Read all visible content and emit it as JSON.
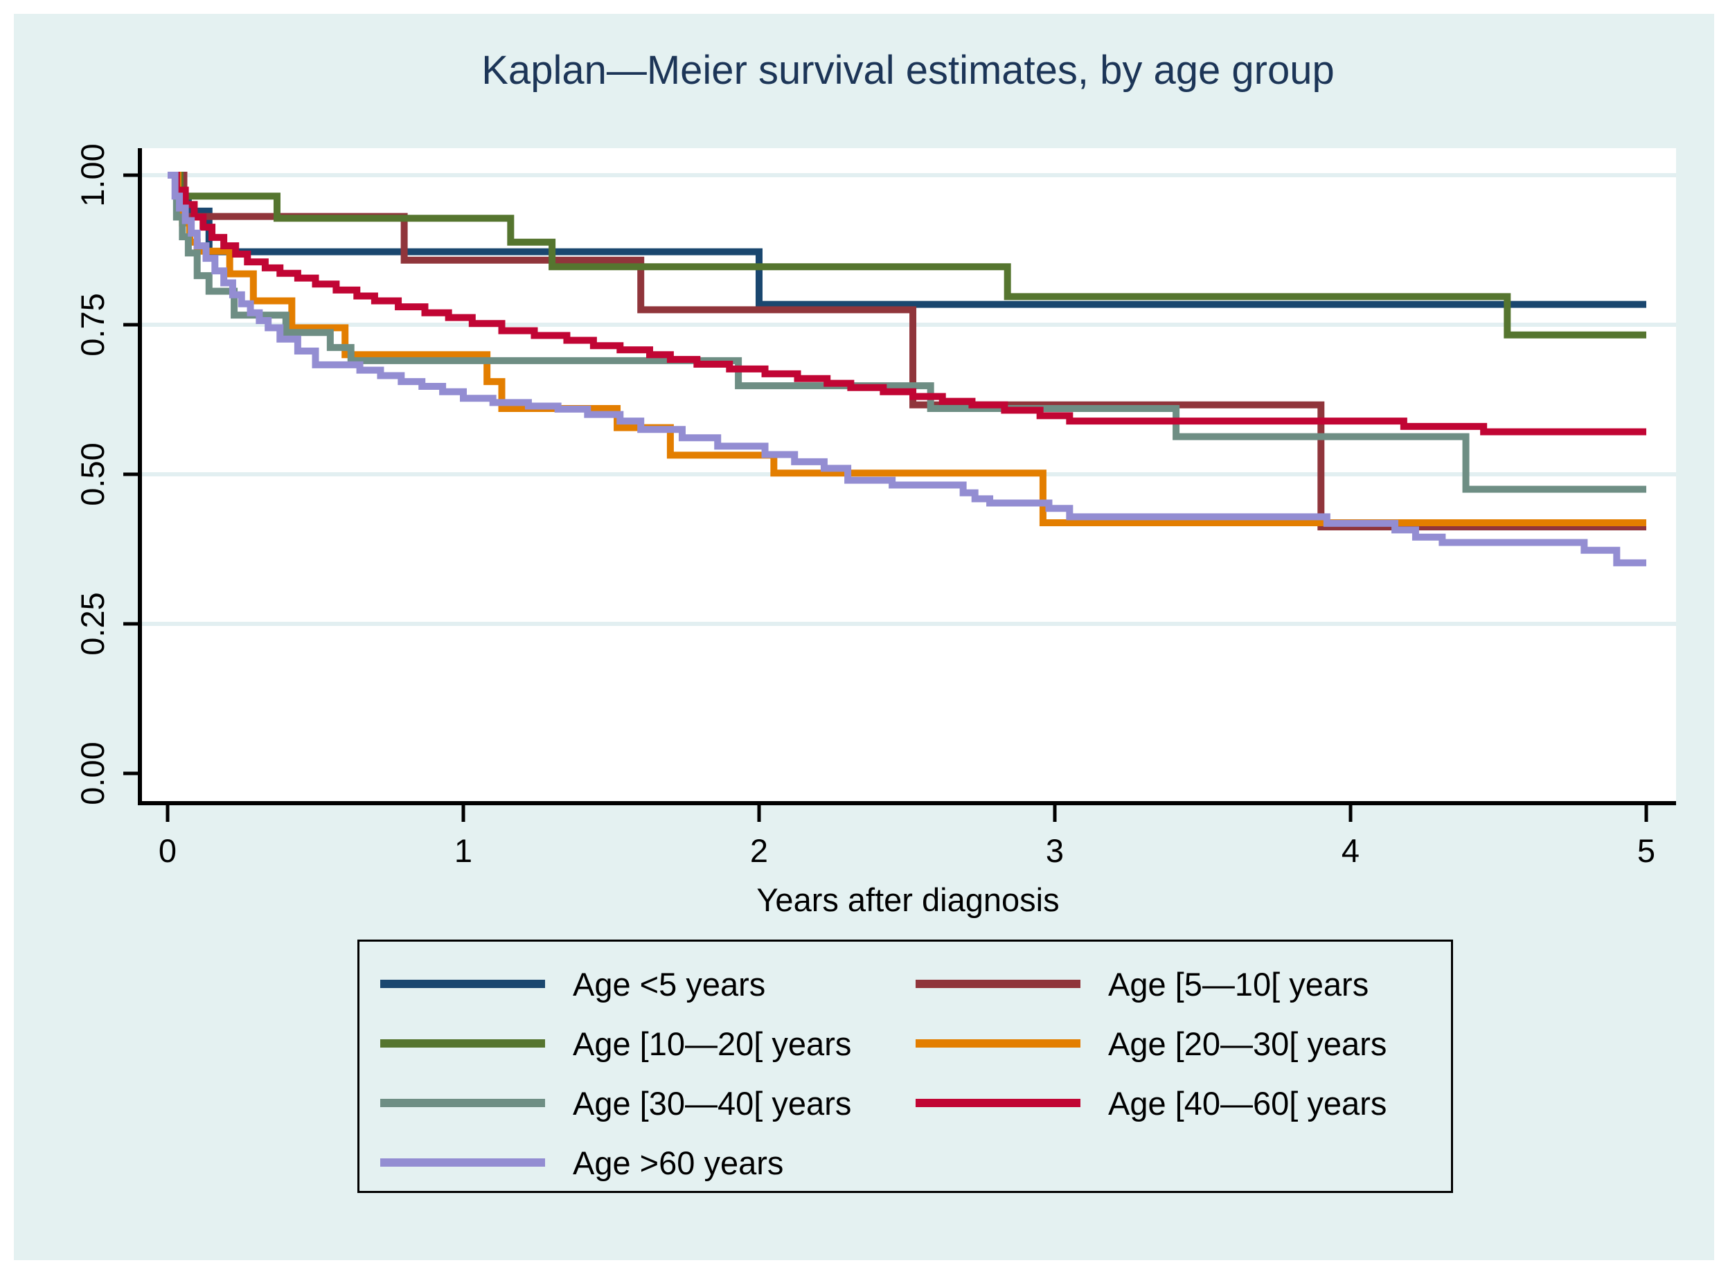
{
  "page": {
    "background_color": "#ffffff",
    "canvas_color": "#e4f1f1",
    "plot_background": "#ffffff",
    "gridline_color": "#e2eff1",
    "axis_color": "#000000",
    "title_color": "#1c3557"
  },
  "chart_data": {
    "type": "line",
    "step": true,
    "title": "Kaplan—Meier survival estimates, by age group",
    "xlabel": "Years after diagnosis",
    "ylabel": "",
    "x_range": [
      0,
      5
    ],
    "y_range": [
      0,
      1
    ],
    "x_ticks": [
      "0",
      "1",
      "2",
      "3",
      "4",
      "5"
    ],
    "y_ticks": [
      "0.00",
      "0.25",
      "0.50",
      "0.75",
      "1.00"
    ],
    "grid": "horizontal gridlines at 0.25, 0.50, 0.75, 1.00",
    "legend_position": "bottom",
    "legend_columns": [
      [
        0,
        2,
        4,
        6
      ],
      [
        1,
        3,
        5
      ]
    ],
    "series": [
      {
        "name": "Age <5 years",
        "color": "#1a476f",
        "points": [
          [
            0,
            1.0
          ],
          [
            0.04,
            0.96
          ],
          [
            0.07,
            0.94
          ],
          [
            0.14,
            0.872
          ],
          [
            2.0,
            0.784
          ]
        ]
      },
      {
        "name": "Age [5—10[ years",
        "color": "#90353b",
        "points": [
          [
            0,
            1.0
          ],
          [
            0.055,
            0.931
          ],
          [
            0.8,
            0.858
          ],
          [
            1.6,
            0.775
          ],
          [
            2.52,
            0.616
          ],
          [
            3.9,
            0.412
          ]
        ]
      },
      {
        "name": "Age [10—20[ years",
        "color": "#55752f",
        "points": [
          [
            0,
            1.0
          ],
          [
            0.042,
            0.965
          ],
          [
            0.37,
            0.928
          ],
          [
            1.16,
            0.888
          ],
          [
            1.3,
            0.847
          ],
          [
            2.84,
            0.797
          ],
          [
            4.53,
            0.733
          ]
        ]
      },
      {
        "name": "Age [20—30[ years",
        "color": "#e37e00",
        "points": [
          [
            0,
            1.0
          ],
          [
            0.035,
            0.955
          ],
          [
            0.05,
            0.92
          ],
          [
            0.075,
            0.888
          ],
          [
            0.1,
            0.873
          ],
          [
            0.21,
            0.835
          ],
          [
            0.29,
            0.79
          ],
          [
            0.42,
            0.745
          ],
          [
            0.6,
            0.7
          ],
          [
            1.08,
            0.655
          ],
          [
            1.13,
            0.61
          ],
          [
            1.52,
            0.578
          ],
          [
            1.7,
            0.532
          ],
          [
            2.05,
            0.502
          ],
          [
            2.96,
            0.419
          ]
        ]
      },
      {
        "name": "Age [30—40[ years",
        "color": "#6e8e84",
        "points": [
          [
            0,
            1.0
          ],
          [
            0.03,
            0.93
          ],
          [
            0.05,
            0.897
          ],
          [
            0.07,
            0.87
          ],
          [
            0.1,
            0.832
          ],
          [
            0.14,
            0.806
          ],
          [
            0.225,
            0.766
          ],
          [
            0.4,
            0.737
          ],
          [
            0.55,
            0.712
          ],
          [
            0.62,
            0.69
          ],
          [
            1.93,
            0.648
          ],
          [
            2.58,
            0.61
          ],
          [
            3.41,
            0.563
          ],
          [
            4.39,
            0.475
          ]
        ]
      },
      {
        "name": "Age [40—60[ years",
        "color": "#c10534",
        "points": [
          [
            0,
            1.0
          ],
          [
            0.03,
            0.975
          ],
          [
            0.06,
            0.951
          ],
          [
            0.09,
            0.93
          ],
          [
            0.12,
            0.913
          ],
          [
            0.15,
            0.896
          ],
          [
            0.19,
            0.882
          ],
          [
            0.23,
            0.868
          ],
          [
            0.27,
            0.855
          ],
          [
            0.33,
            0.845
          ],
          [
            0.38,
            0.836
          ],
          [
            0.44,
            0.828
          ],
          [
            0.5,
            0.818
          ],
          [
            0.57,
            0.808
          ],
          [
            0.64,
            0.798
          ],
          [
            0.7,
            0.79
          ],
          [
            0.78,
            0.78
          ],
          [
            0.87,
            0.77
          ],
          [
            0.95,
            0.762
          ],
          [
            1.03,
            0.752
          ],
          [
            1.13,
            0.74
          ],
          [
            1.24,
            0.732
          ],
          [
            1.35,
            0.724
          ],
          [
            1.44,
            0.715
          ],
          [
            1.53,
            0.708
          ],
          [
            1.63,
            0.7
          ],
          [
            1.7,
            0.692
          ],
          [
            1.79,
            0.684
          ],
          [
            1.9,
            0.676
          ],
          [
            2.02,
            0.668
          ],
          [
            2.13,
            0.66
          ],
          [
            2.23,
            0.652
          ],
          [
            2.31,
            0.645
          ],
          [
            2.42,
            0.638
          ],
          [
            2.52,
            0.63
          ],
          [
            2.62,
            0.622
          ],
          [
            2.72,
            0.616
          ],
          [
            2.83,
            0.607
          ],
          [
            2.95,
            0.598
          ],
          [
            3.05,
            0.589
          ],
          [
            4.18,
            0.58
          ],
          [
            4.45,
            0.571
          ]
        ]
      },
      {
        "name": "Age >60 years",
        "color": "#938dd2",
        "points": [
          [
            0,
            1.0
          ],
          [
            0.025,
            0.965
          ],
          [
            0.04,
            0.945
          ],
          [
            0.06,
            0.924
          ],
          [
            0.08,
            0.903
          ],
          [
            0.1,
            0.882
          ],
          [
            0.13,
            0.861
          ],
          [
            0.16,
            0.84
          ],
          [
            0.19,
            0.82
          ],
          [
            0.22,
            0.8
          ],
          [
            0.25,
            0.785
          ],
          [
            0.28,
            0.77
          ],
          [
            0.31,
            0.757
          ],
          [
            0.34,
            0.745
          ],
          [
            0.38,
            0.726
          ],
          [
            0.44,
            0.706
          ],
          [
            0.5,
            0.683
          ],
          [
            0.65,
            0.674
          ],
          [
            0.72,
            0.665
          ],
          [
            0.79,
            0.655
          ],
          [
            0.86,
            0.647
          ],
          [
            0.93,
            0.638
          ],
          [
            1.0,
            0.627
          ],
          [
            1.1,
            0.62
          ],
          [
            1.22,
            0.614
          ],
          [
            1.32,
            0.609
          ],
          [
            1.42,
            0.6
          ],
          [
            1.53,
            0.589
          ],
          [
            1.6,
            0.575
          ],
          [
            1.74,
            0.561
          ],
          [
            1.86,
            0.547
          ],
          [
            2.02,
            0.533
          ],
          [
            2.12,
            0.521
          ],
          [
            2.22,
            0.51
          ],
          [
            2.3,
            0.49
          ],
          [
            2.45,
            0.482
          ],
          [
            2.69,
            0.469
          ],
          [
            2.73,
            0.459
          ],
          [
            2.78,
            0.452
          ],
          [
            2.98,
            0.443
          ],
          [
            3.05,
            0.429
          ],
          [
            3.92,
            0.418
          ],
          [
            4.15,
            0.407
          ],
          [
            4.22,
            0.395
          ],
          [
            4.31,
            0.386
          ],
          [
            4.79,
            0.373
          ],
          [
            4.9,
            0.352
          ]
        ]
      }
    ]
  }
}
